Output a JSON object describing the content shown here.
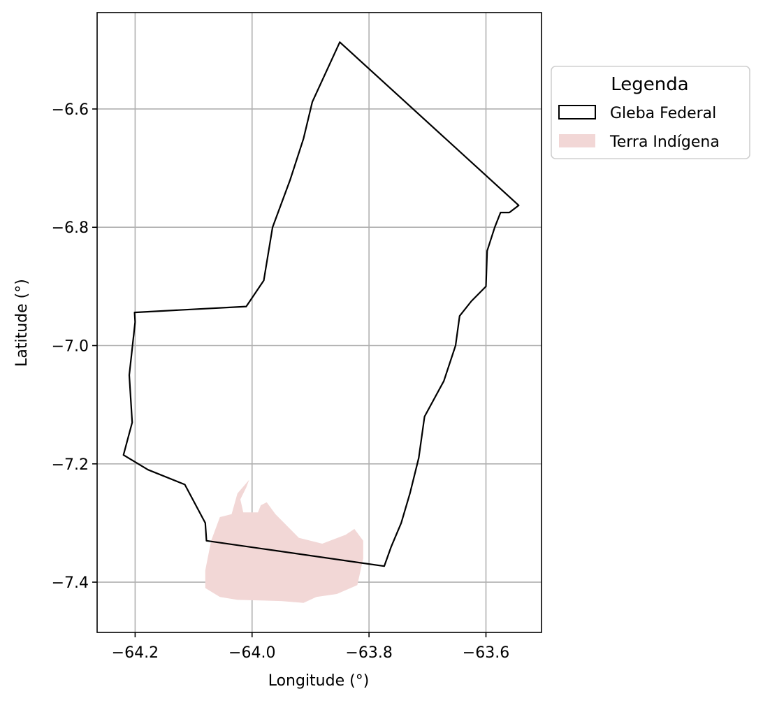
{
  "chart_data": {
    "type": "map",
    "xlabel": "Longitude (°)",
    "ylabel": "Latitude (°)",
    "xlim": [
      -64.265,
      -63.505
    ],
    "ylim": [
      -7.485,
      -6.437
    ],
    "xticks": [
      -64.2,
      -64.0,
      -63.8,
      -63.6
    ],
    "xtick_labels": [
      "−64.2",
      "−64.0",
      "−63.8",
      "−63.6"
    ],
    "yticks": [
      -6.6,
      -6.8,
      -7.0,
      -7.2,
      -7.4
    ],
    "ytick_labels": [
      "−6.6",
      "−6.8",
      "−7.0",
      "−7.2",
      "−7.4"
    ],
    "grid": true,
    "legend": {
      "title": "Legenda",
      "placement": "outside-upper-right",
      "entries": [
        {
          "label": "Gleba Federal",
          "style": "outline",
          "color": "#000000"
        },
        {
          "label": "Terra Indígena",
          "style": "fill",
          "color": "#f2d7d6"
        }
      ]
    },
    "features": [
      {
        "name": "Gleba Federal",
        "style": "outline",
        "color": "#000000",
        "coordinates": [
          [
            -63.85,
            -6.487
          ],
          [
            -63.544,
            -6.763
          ],
          [
            -63.56,
            -6.775
          ],
          [
            -63.575,
            -6.775
          ],
          [
            -63.585,
            -6.8
          ],
          [
            -63.598,
            -6.84
          ],
          [
            -63.6,
            -6.9
          ],
          [
            -63.625,
            -6.925
          ],
          [
            -63.645,
            -6.95
          ],
          [
            -63.652,
            -7.0
          ],
          [
            -63.672,
            -7.06
          ],
          [
            -63.705,
            -7.12
          ],
          [
            -63.715,
            -7.19
          ],
          [
            -63.73,
            -7.25
          ],
          [
            -63.745,
            -7.3
          ],
          [
            -63.762,
            -7.34
          ],
          [
            -63.774,
            -7.373
          ],
          [
            -64.078,
            -7.33
          ],
          [
            -64.08,
            -7.3
          ],
          [
            -64.115,
            -7.235
          ],
          [
            -64.178,
            -7.21
          ],
          [
            -64.22,
            -7.185
          ],
          [
            -64.205,
            -7.13
          ],
          [
            -64.21,
            -7.05
          ],
          [
            -64.2,
            -6.96
          ],
          [
            -64.201,
            -6.944
          ],
          [
            -64.01,
            -6.934
          ],
          [
            -63.98,
            -6.89
          ],
          [
            -63.965,
            -6.8
          ],
          [
            -63.935,
            -6.72
          ],
          [
            -63.912,
            -6.65
          ],
          [
            -63.897,
            -6.588
          ],
          [
            -63.85,
            -6.487
          ]
        ]
      },
      {
        "name": "Terra Indígena",
        "style": "fill",
        "color": "#f2d7d6",
        "coordinates": [
          [
            -64.005,
            -7.227
          ],
          [
            -64.025,
            -7.25
          ],
          [
            -64.035,
            -7.285
          ],
          [
            -64.055,
            -7.29
          ],
          [
            -64.07,
            -7.33
          ],
          [
            -64.08,
            -7.38
          ],
          [
            -64.08,
            -7.41
          ],
          [
            -64.055,
            -7.425
          ],
          [
            -64.025,
            -7.43
          ],
          [
            -63.95,
            -7.432
          ],
          [
            -63.912,
            -7.435
          ],
          [
            -63.89,
            -7.425
          ],
          [
            -63.855,
            -7.42
          ],
          [
            -63.82,
            -7.405
          ],
          [
            -63.81,
            -7.36
          ],
          [
            -63.81,
            -7.33
          ],
          [
            -63.825,
            -7.31
          ],
          [
            -63.84,
            -7.32
          ],
          [
            -63.88,
            -7.335
          ],
          [
            -63.92,
            -7.325
          ],
          [
            -63.96,
            -7.285
          ],
          [
            -63.975,
            -7.265
          ],
          [
            -63.985,
            -7.27
          ],
          [
            -63.99,
            -7.282
          ],
          [
            -64.015,
            -7.282
          ],
          [
            -64.02,
            -7.26
          ],
          [
            -64.01,
            -7.24
          ],
          [
            -64.005,
            -7.227
          ]
        ]
      }
    ]
  }
}
